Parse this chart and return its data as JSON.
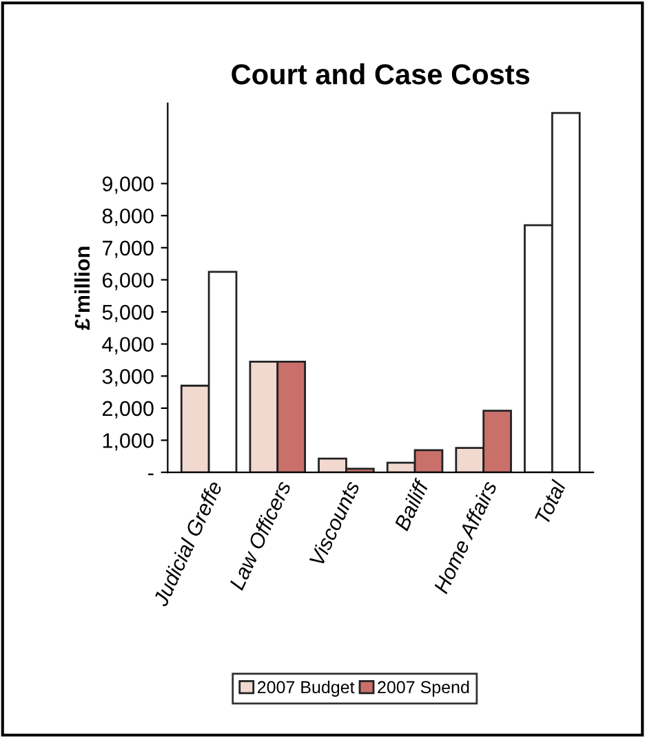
{
  "chart_data": {
    "type": "bar",
    "title": "Court and Case Costs",
    "ylabel": "£'million",
    "categories": [
      "Judicial Greffe",
      "Law Officers",
      "Viscounts",
      "Bailiff",
      "Home Affairs",
      "Total"
    ],
    "series": [
      {
        "name": "2007 Budget",
        "color": "#f2d9d0",
        "colors": [
          "#f2d9d0",
          "#f2d9d0",
          "#f2d9d0",
          "#f2d9d0",
          "#f2d9d0",
          "#ffffff"
        ],
        "values": [
          2700,
          3450,
          430,
          300,
          760,
          7700
        ]
      },
      {
        "name": "2007 Spend",
        "color": "#c9706a",
        "colors": [
          "#ffffff",
          "#c9706a",
          "#c9706a",
          "#c9706a",
          "#c9706a",
          "#ffffff"
        ],
        "values": [
          6250,
          3450,
          110,
          690,
          1920,
          11200
        ]
      }
    ],
    "ylim": [
      0,
      11500
    ],
    "yticks": [
      {
        "value": 0,
        "label": "-"
      },
      {
        "value": 1000,
        "label": "1,000"
      },
      {
        "value": 2000,
        "label": "2,000"
      },
      {
        "value": 3000,
        "label": "3,000"
      },
      {
        "value": 4000,
        "label": "4,000"
      },
      {
        "value": 5000,
        "label": "5,000"
      },
      {
        "value": 6000,
        "label": "6,000"
      },
      {
        "value": 7000,
        "label": "7,000"
      },
      {
        "value": 8000,
        "label": "8,000"
      },
      {
        "value": 9000,
        "label": "9,000"
      }
    ],
    "grid": false,
    "legend": "bottom"
  }
}
